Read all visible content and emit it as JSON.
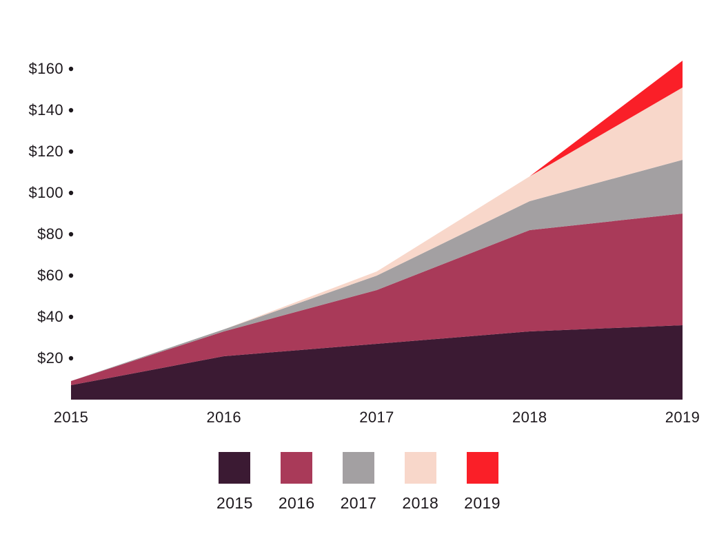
{
  "chart_data": {
    "type": "area",
    "stacked": true,
    "title": "",
    "xlabel": "",
    "ylabel": "",
    "grid": false,
    "legend_position": "bottom",
    "x_categories": [
      "2015",
      "2016",
      "2017",
      "2018",
      "2019"
    ],
    "y_tick_labels": [
      "$20",
      "$40",
      "$60",
      "$80",
      "$100",
      "$120",
      "$140",
      "$160"
    ],
    "y_tick_values": [
      20,
      40,
      60,
      80,
      100,
      120,
      140,
      160
    ],
    "ylim": [
      0,
      170
    ],
    "series": [
      {
        "name": "2015",
        "color": "#3b1a33",
        "values": [
          7,
          21,
          27,
          33,
          36
        ]
      },
      {
        "name": "2016",
        "color": "#a93a59",
        "values": [
          2,
          12,
          26,
          49,
          54
        ]
      },
      {
        "name": "2017",
        "color": "#a3a0a2",
        "values": [
          0,
          1,
          7,
          14,
          26
        ]
      },
      {
        "name": "2018",
        "color": "#f8d7ca",
        "values": [
          0,
          0,
          2,
          12,
          35
        ]
      },
      {
        "name": "2019",
        "color": "#fa1f28",
        "values": [
          0,
          0,
          0,
          0,
          13
        ]
      }
    ],
    "stacked_totals": [
      9,
      34,
      62,
      108,
      164
    ],
    "legend": [
      {
        "label": "2015",
        "color": "#3b1a33"
      },
      {
        "label": "2016",
        "color": "#a93a59"
      },
      {
        "label": "2017",
        "color": "#a3a0a2"
      },
      {
        "label": "2018",
        "color": "#f8d7ca"
      },
      {
        "label": "2019",
        "color": "#fa1f28"
      }
    ]
  },
  "colors": {
    "background": "#ffffff",
    "axis_text": "#1d181d",
    "tick_dot": "#1d181d"
  }
}
